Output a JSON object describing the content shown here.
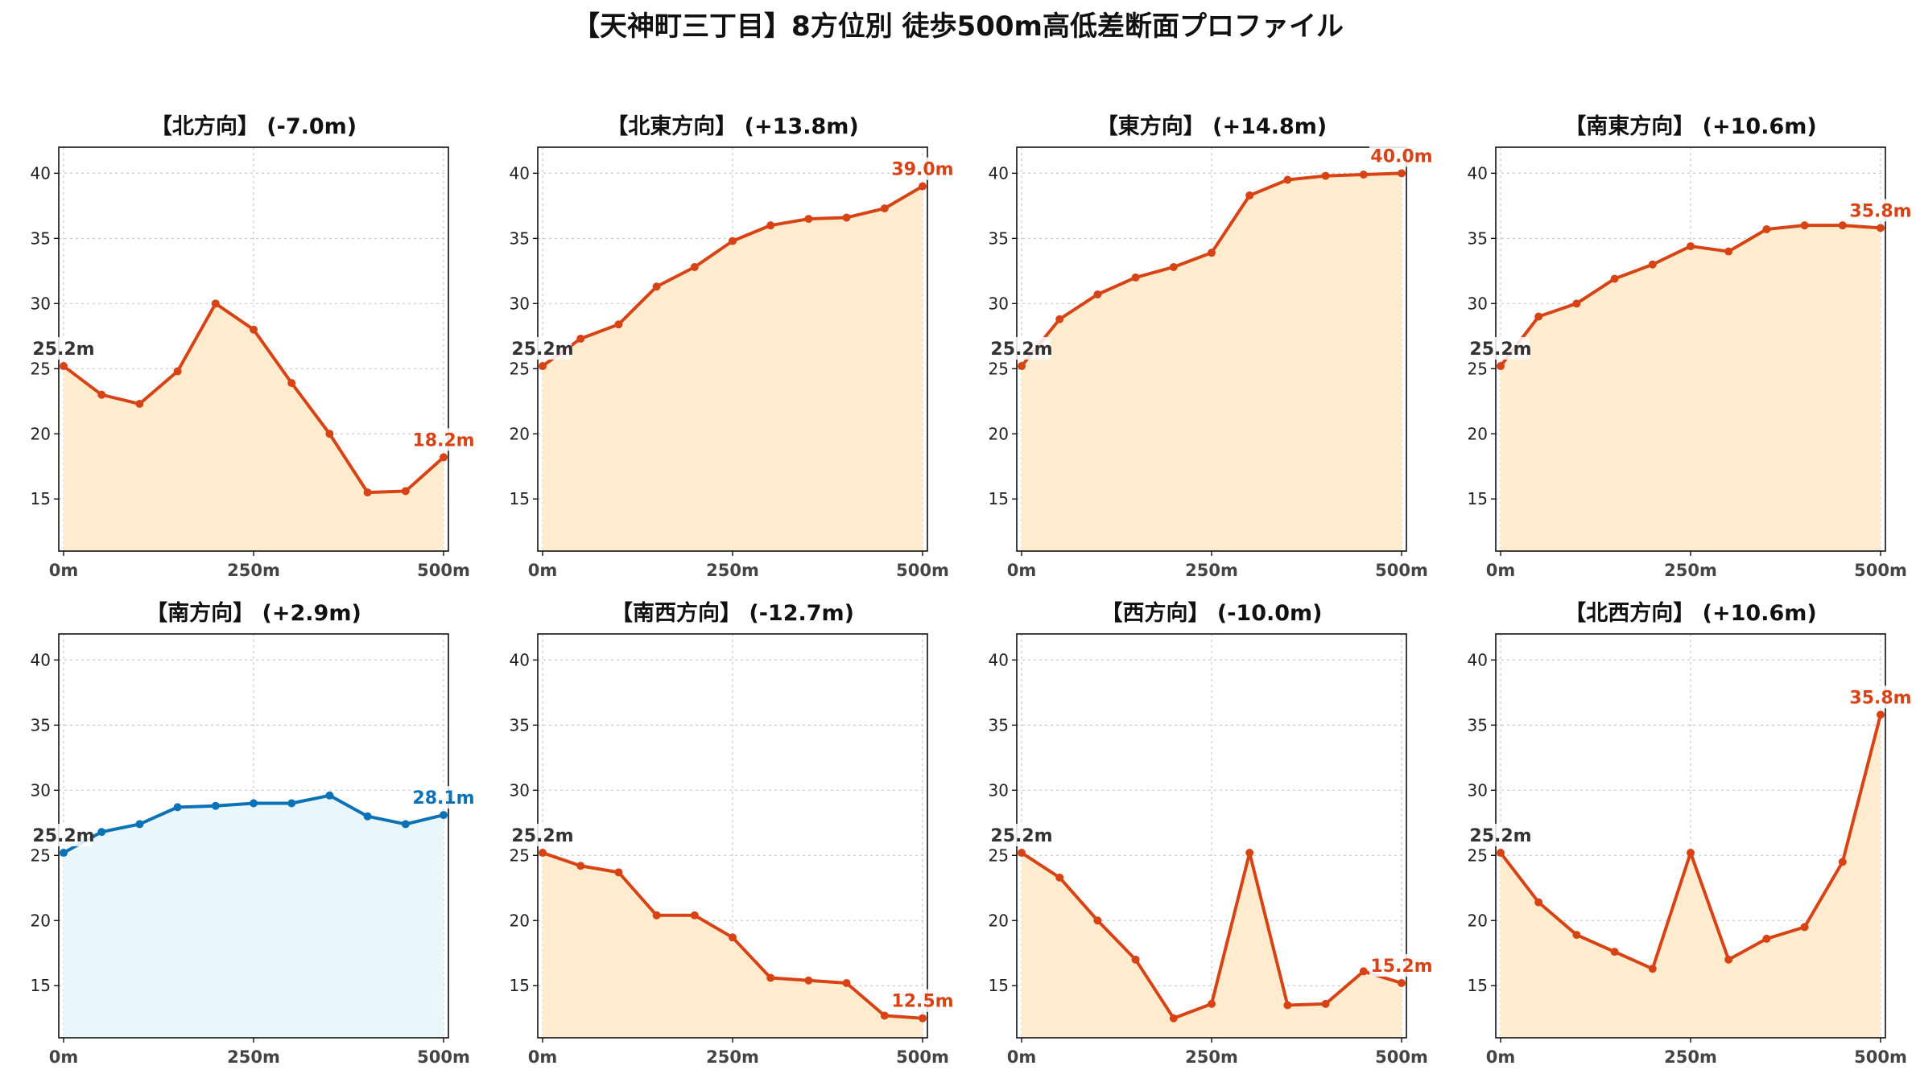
{
  "figure": {
    "title": "【天神町三丁目】8方位別 徒歩500m高低差断面プロファイル"
  },
  "colors": {
    "warm_line": "#d84315",
    "warm_fill": "#ffecce",
    "cool_line": "#0b72b5",
    "cool_fill": "#e9f6fb",
    "start_label": "#333333"
  },
  "chart_data": [
    {
      "type": "area",
      "title": "【北方向】 (-7.0m)",
      "x": [
        0,
        50,
        100,
        150,
        200,
        250,
        300,
        350,
        400,
        450,
        500
      ],
      "y": [
        25.2,
        23.0,
        22.3,
        24.8,
        30.0,
        28.0,
        23.9,
        20.0,
        15.5,
        15.6,
        18.2
      ],
      "xticks": [
        "0m",
        "250m",
        "500m"
      ],
      "yticks": [
        15,
        20,
        25,
        30,
        35,
        40
      ],
      "ylim": [
        11,
        42
      ],
      "start_label": "25.2m",
      "end_label": "18.2m",
      "theme": "warm",
      "grid": true
    },
    {
      "type": "area",
      "title": "【北東方向】 (+13.8m)",
      "x": [
        0,
        50,
        100,
        150,
        200,
        250,
        300,
        350,
        400,
        450,
        500
      ],
      "y": [
        25.2,
        27.3,
        28.4,
        31.3,
        32.8,
        34.8,
        36.0,
        36.5,
        36.6,
        37.3,
        39.0
      ],
      "xticks": [
        "0m",
        "250m",
        "500m"
      ],
      "yticks": [
        15,
        20,
        25,
        30,
        35,
        40
      ],
      "ylim": [
        11,
        42
      ],
      "start_label": "25.2m",
      "end_label": "39.0m",
      "theme": "warm",
      "grid": true
    },
    {
      "type": "area",
      "title": "【東方向】 (+14.8m)",
      "x": [
        0,
        50,
        100,
        150,
        200,
        250,
        300,
        350,
        400,
        450,
        500
      ],
      "y": [
        25.2,
        28.8,
        30.7,
        32.0,
        32.8,
        33.9,
        38.3,
        39.5,
        39.8,
        39.9,
        40.0
      ],
      "xticks": [
        "0m",
        "250m",
        "500m"
      ],
      "yticks": [
        15,
        20,
        25,
        30,
        35,
        40
      ],
      "ylim": [
        11,
        42
      ],
      "start_label": "25.2m",
      "end_label": "40.0m",
      "theme": "warm",
      "grid": true
    },
    {
      "type": "area",
      "title": "【南東方向】 (+10.6m)",
      "x": [
        0,
        50,
        100,
        150,
        200,
        250,
        300,
        350,
        400,
        450,
        500
      ],
      "y": [
        25.2,
        29.0,
        30.0,
        31.9,
        33.0,
        34.4,
        34.0,
        35.7,
        36.0,
        36.0,
        35.8
      ],
      "xticks": [
        "0m",
        "250m",
        "500m"
      ],
      "yticks": [
        15,
        20,
        25,
        30,
        35,
        40
      ],
      "ylim": [
        11,
        42
      ],
      "start_label": "25.2m",
      "end_label": "35.8m",
      "theme": "warm",
      "grid": true
    },
    {
      "type": "area",
      "title": "【南方向】 (+2.9m)",
      "x": [
        0,
        50,
        100,
        150,
        200,
        250,
        300,
        350,
        400,
        450,
        500
      ],
      "y": [
        25.2,
        26.8,
        27.4,
        28.7,
        28.8,
        29.0,
        29.0,
        29.6,
        28.0,
        27.4,
        28.1
      ],
      "xticks": [
        "0m",
        "250m",
        "500m"
      ],
      "yticks": [
        15,
        20,
        25,
        30,
        35,
        40
      ],
      "ylim": [
        11,
        42
      ],
      "start_label": "25.2m",
      "end_label": "28.1m",
      "theme": "cool",
      "grid": true
    },
    {
      "type": "area",
      "title": "【南西方向】 (-12.7m)",
      "x": [
        0,
        50,
        100,
        150,
        200,
        250,
        300,
        350,
        400,
        450,
        500
      ],
      "y": [
        25.2,
        24.2,
        23.7,
        20.4,
        20.4,
        18.7,
        15.6,
        15.4,
        15.2,
        12.7,
        12.5
      ],
      "xticks": [
        "0m",
        "250m",
        "500m"
      ],
      "yticks": [
        15,
        20,
        25,
        30,
        35,
        40
      ],
      "ylim": [
        11,
        42
      ],
      "start_label": "25.2m",
      "end_label": "12.5m",
      "theme": "warm",
      "grid": true
    },
    {
      "type": "area",
      "title": "【西方向】 (-10.0m)",
      "x": [
        0,
        50,
        100,
        150,
        200,
        250,
        300,
        350,
        400,
        450,
        500
      ],
      "y": [
        25.2,
        23.3,
        20.0,
        17.0,
        12.5,
        13.6,
        25.2,
        13.5,
        13.6,
        16.1,
        15.2
      ],
      "xticks": [
        "0m",
        "250m",
        "500m"
      ],
      "yticks": [
        15,
        20,
        25,
        30,
        35,
        40
      ],
      "ylim": [
        11,
        42
      ],
      "start_label": "25.2m",
      "end_label": "15.2m",
      "theme": "warm",
      "grid": true
    },
    {
      "type": "area",
      "title": "【北西方向】 (+10.6m)",
      "x": [
        0,
        50,
        100,
        150,
        200,
        250,
        300,
        350,
        400,
        450,
        500
      ],
      "y": [
        25.2,
        21.4,
        18.9,
        17.6,
        16.3,
        25.2,
        17.0,
        18.6,
        19.5,
        24.5,
        35.8
      ],
      "xticks": [
        "0m",
        "250m",
        "500m"
      ],
      "yticks": [
        15,
        20,
        25,
        30,
        35,
        40
      ],
      "ylim": [
        11,
        42
      ],
      "start_label": "25.2m",
      "end_label": "35.8m",
      "theme": "warm",
      "grid": true
    }
  ]
}
